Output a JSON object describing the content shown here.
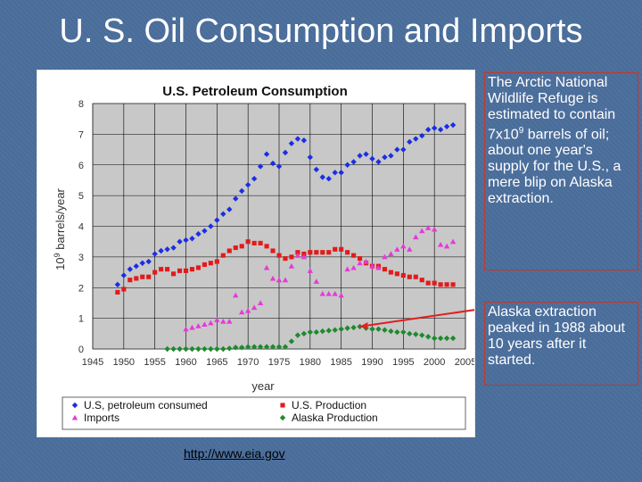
{
  "slide": {
    "title": "U. S. Oil Consumption and Imports",
    "note_arctic_prefix": "The Arctic National Wildlife Refuge is estimated to contain 7x10",
    "note_arctic_sup": "9",
    "note_arctic_suffix": " barrels of oil; about one year's supply for the U.S., a mere blip on Alaska extraction.",
    "note_alaska": "Alaska extraction peaked in 1988 about 10 years after it started.",
    "source_link": "http://www.eia.gov",
    "colors": {
      "background": "#4a6e9c",
      "note_border": "#c0392b",
      "arrow": "#e02020"
    }
  },
  "chart_data": {
    "type": "scatter",
    "title": "U.S. Petroleum Consumption",
    "xlabel": "year",
    "ylabel_prefix": "10",
    "ylabel_sup": "9",
    "ylabel_suffix": " barrels/year",
    "xlim": [
      1945,
      2005
    ],
    "ylim": [
      0,
      8
    ],
    "xticks": [
      "1945",
      "1950",
      "1955",
      "1960",
      "1965",
      "1970",
      "1975",
      "1980",
      "1985",
      "1990",
      "1995",
      "2000",
      "2005"
    ],
    "yticks": [
      "0",
      "1",
      "2",
      "3",
      "4",
      "5",
      "6",
      "7",
      "8"
    ],
    "grid": true,
    "plot_background": "#c8c8c8",
    "legend_position": "bottom",
    "series": [
      {
        "name": "U.S, petroleum consumed",
        "marker": "diamond",
        "color": "#1a2ee6",
        "x": [
          1949,
          1950,
          1951,
          1952,
          1953,
          1954,
          1955,
          1956,
          1957,
          1958,
          1959,
          1960,
          1961,
          1962,
          1963,
          1964,
          1965,
          1966,
          1967,
          1968,
          1969,
          1970,
          1971,
          1972,
          1973,
          1974,
          1975,
          1976,
          1977,
          1978,
          1979,
          1980,
          1981,
          1982,
          1983,
          1984,
          1985,
          1986,
          1987,
          1988,
          1989,
          1990,
          1991,
          1992,
          1993,
          1994,
          1995,
          1996,
          1997,
          1998,
          1999,
          2000,
          2001,
          2002,
          2003
        ],
        "y": [
          2.1,
          2.4,
          2.6,
          2.7,
          2.8,
          2.85,
          3.1,
          3.2,
          3.25,
          3.3,
          3.5,
          3.55,
          3.6,
          3.75,
          3.85,
          4.0,
          4.2,
          4.4,
          4.55,
          4.9,
          5.15,
          5.35,
          5.55,
          5.95,
          6.35,
          6.05,
          5.95,
          6.4,
          6.7,
          6.85,
          6.8,
          6.25,
          5.85,
          5.6,
          5.55,
          5.75,
          5.75,
          6.0,
          6.1,
          6.3,
          6.35,
          6.2,
          6.1,
          6.25,
          6.3,
          6.5,
          6.5,
          6.75,
          6.85,
          6.95,
          7.15,
          7.2,
          7.15,
          7.25,
          7.3
        ]
      },
      {
        "name": "U.S. Production",
        "marker": "square",
        "color": "#e31a1a",
        "x": [
          1949,
          1950,
          1951,
          1952,
          1953,
          1954,
          1955,
          1956,
          1957,
          1958,
          1959,
          1960,
          1961,
          1962,
          1963,
          1964,
          1965,
          1966,
          1967,
          1968,
          1969,
          1970,
          1971,
          1972,
          1973,
          1974,
          1975,
          1976,
          1977,
          1978,
          1979,
          1980,
          1981,
          1982,
          1983,
          1984,
          1985,
          1986,
          1987,
          1988,
          1989,
          1990,
          1991,
          1992,
          1993,
          1994,
          1995,
          1996,
          1997,
          1998,
          1999,
          2000,
          2001,
          2002,
          2003
        ],
        "y": [
          1.85,
          1.95,
          2.25,
          2.3,
          2.35,
          2.35,
          2.5,
          2.6,
          2.6,
          2.45,
          2.55,
          2.55,
          2.6,
          2.65,
          2.75,
          2.8,
          2.85,
          3.05,
          3.2,
          3.3,
          3.35,
          3.5,
          3.45,
          3.45,
          3.35,
          3.2,
          3.05,
          2.95,
          3.0,
          3.15,
          3.1,
          3.15,
          3.15,
          3.15,
          3.15,
          3.25,
          3.25,
          3.15,
          3.05,
          2.95,
          2.8,
          2.7,
          2.7,
          2.6,
          2.5,
          2.45,
          2.4,
          2.35,
          2.35,
          2.25,
          2.15,
          2.15,
          2.1,
          2.1,
          2.1
        ]
      },
      {
        "name": "Imports",
        "marker": "triangle",
        "color": "#e63ad9",
        "x": [
          1960,
          1961,
          1962,
          1963,
          1964,
          1965,
          1966,
          1967,
          1968,
          1969,
          1970,
          1971,
          1972,
          1973,
          1974,
          1975,
          1976,
          1977,
          1978,
          1979,
          1980,
          1981,
          1982,
          1983,
          1984,
          1985,
          1986,
          1987,
          1988,
          1989,
          1990,
          1991,
          1992,
          1993,
          1994,
          1995,
          1996,
          1997,
          1998,
          1999,
          2000,
          2001,
          2002,
          2003
        ],
        "y": [
          0.65,
          0.7,
          0.75,
          0.8,
          0.85,
          0.95,
          0.9,
          0.9,
          1.75,
          1.2,
          1.25,
          1.35,
          1.5,
          2.65,
          2.3,
          2.25,
          2.25,
          2.7,
          3.05,
          3.0,
          2.55,
          2.2,
          1.8,
          1.8,
          1.8,
          1.75,
          2.6,
          2.65,
          2.8,
          2.85,
          2.7,
          2.65,
          3.0,
          3.1,
          3.25,
          3.35,
          3.25,
          3.65,
          3.85,
          3.95,
          3.9,
          3.4,
          3.35,
          3.5
        ]
      },
      {
        "name": "Alaska Production",
        "marker": "diamond",
        "color": "#1e8a2e",
        "x": [
          1957,
          1958,
          1959,
          1960,
          1961,
          1962,
          1963,
          1964,
          1965,
          1966,
          1967,
          1968,
          1969,
          1970,
          1971,
          1972,
          1973,
          1974,
          1975,
          1976,
          1977,
          1978,
          1979,
          1980,
          1981,
          1982,
          1983,
          1984,
          1985,
          1986,
          1987,
          1988,
          1989,
          1990,
          1991,
          1992,
          1993,
          1994,
          1995,
          1996,
          1997,
          1998,
          1999,
          2000,
          2001,
          2002,
          2003
        ],
        "y": [
          0.0,
          0.0,
          0.0,
          0.0,
          0.0,
          0.0,
          0.0,
          0.0,
          0.0,
          0.0,
          0.02,
          0.05,
          0.05,
          0.07,
          0.07,
          0.07,
          0.07,
          0.07,
          0.07,
          0.07,
          0.25,
          0.45,
          0.5,
          0.55,
          0.55,
          0.58,
          0.6,
          0.62,
          0.65,
          0.68,
          0.7,
          0.73,
          0.68,
          0.65,
          0.65,
          0.62,
          0.58,
          0.55,
          0.55,
          0.5,
          0.48,
          0.45,
          0.4,
          0.35,
          0.35,
          0.35,
          0.35
        ]
      }
    ]
  }
}
